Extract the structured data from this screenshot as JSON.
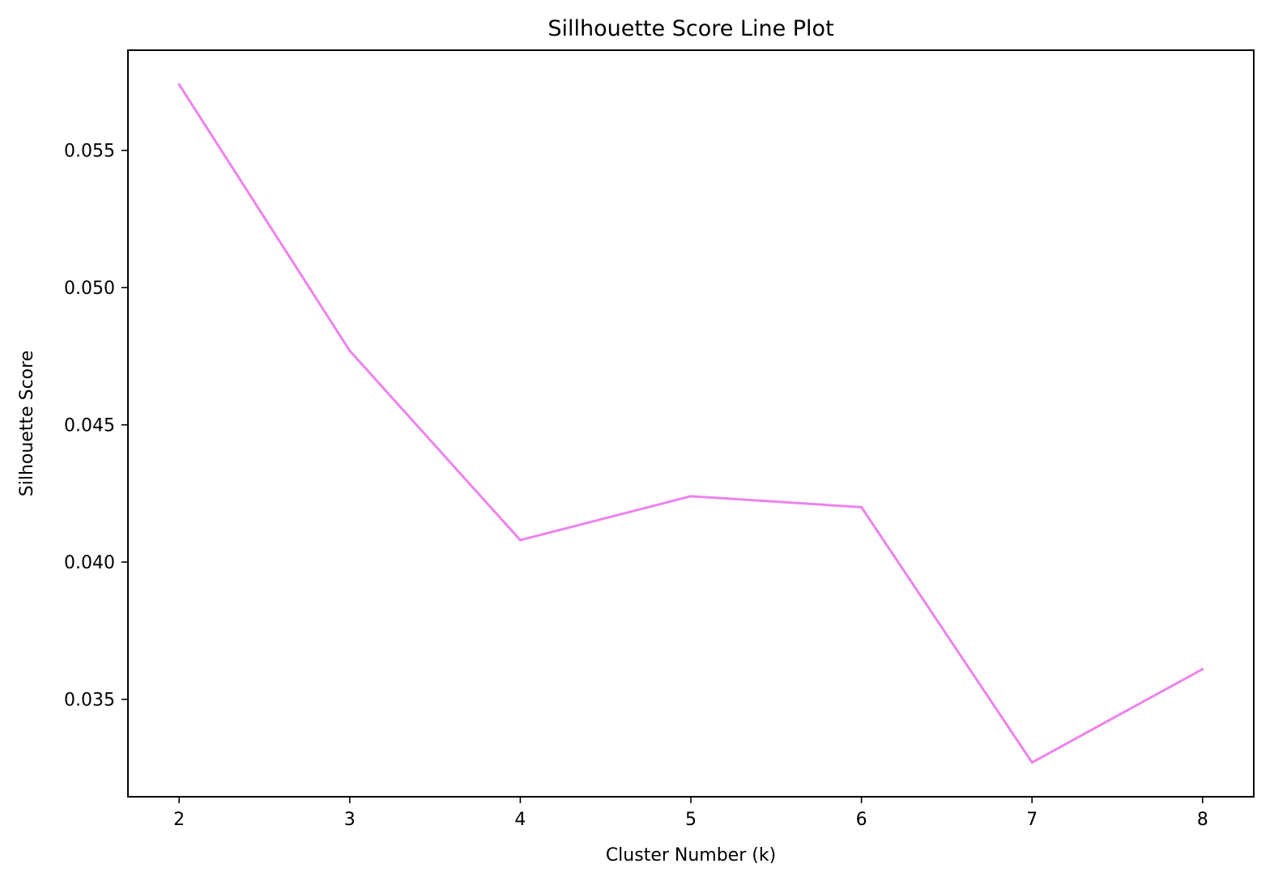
{
  "chart_data": {
    "type": "line",
    "title": "Sillhouette Score Line Plot",
    "xlabel": "Cluster Number (k)",
    "ylabel": "Silhouette Score",
    "x": [
      2,
      3,
      4,
      5,
      6,
      7,
      8
    ],
    "series": [
      {
        "values": [
          0.0574,
          0.0477,
          0.0408,
          0.0424,
          0.042,
          0.0327,
          0.0361
        ]
      }
    ],
    "xticks": [
      "2",
      "3",
      "4",
      "5",
      "6",
      "7",
      "8"
    ],
    "yticks": [
      "0.035",
      "0.040",
      "0.045",
      "0.050",
      "0.055"
    ],
    "xlim": [
      1.7,
      8.3
    ],
    "ylim": [
      0.03145,
      0.05865
    ],
    "grid": false,
    "line_color": "#ee82ee"
  }
}
